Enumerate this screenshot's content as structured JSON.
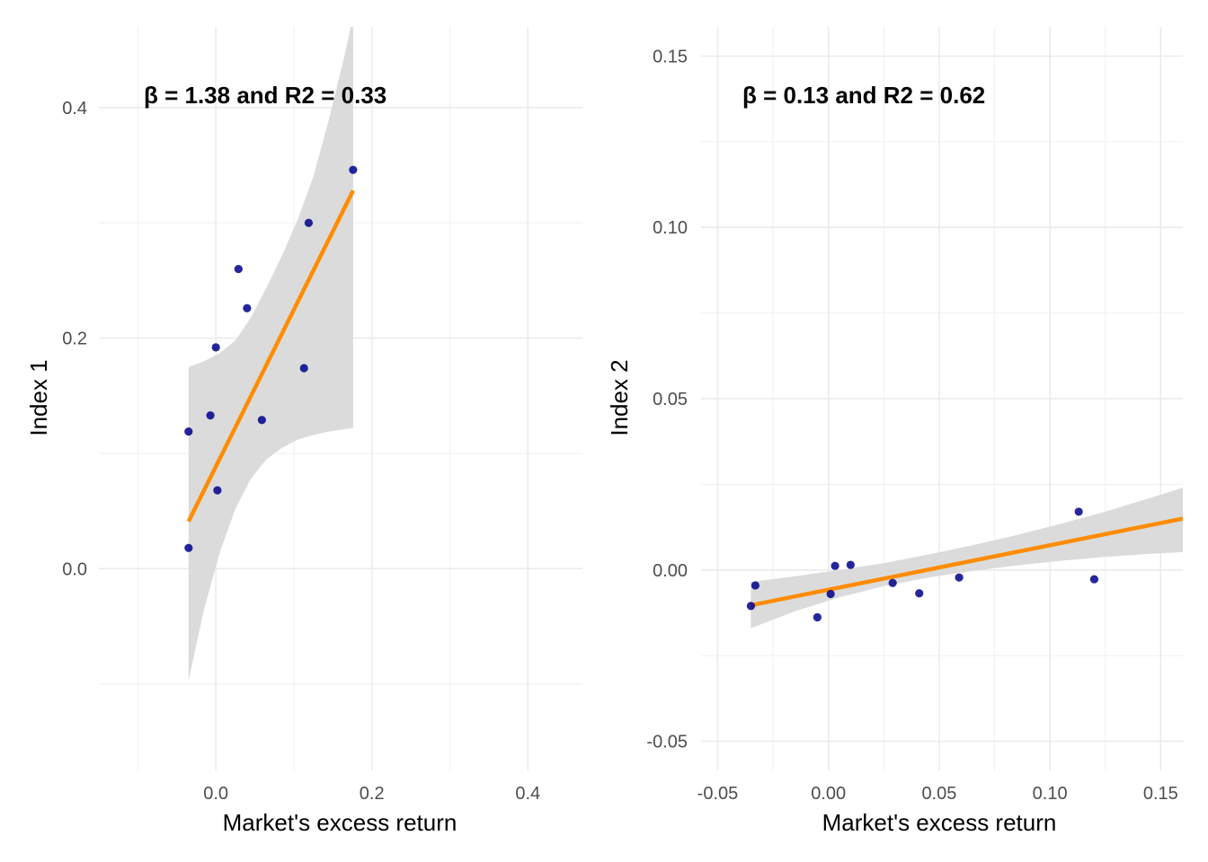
{
  "chart_data": [
    {
      "type": "scatter",
      "xlabel": "Market's excess return",
      "ylabel": "Index 1",
      "annotation": "β = 1.38 and R2 = 0.33",
      "xlim": [
        -0.15,
        0.47
      ],
      "ylim": [
        -0.175,
        0.47
      ],
      "xticks": [
        0.0,
        0.2,
        0.4
      ],
      "xtick_labels": [
        "0.0",
        "0.2",
        "0.4"
      ],
      "yticks": [
        0.0,
        0.2,
        0.4
      ],
      "ytick_labels": [
        "0.0",
        "0.2",
        "0.4"
      ],
      "points": [
        {
          "x": -0.035,
          "y": 0.018
        },
        {
          "x": -0.035,
          "y": 0.119
        },
        {
          "x": -0.007,
          "y": 0.133
        },
        {
          "x": 0.0,
          "y": 0.192
        },
        {
          "x": 0.002,
          "y": 0.068
        },
        {
          "x": 0.029,
          "y": 0.26
        },
        {
          "x": 0.04,
          "y": 0.226
        },
        {
          "x": 0.059,
          "y": 0.129
        },
        {
          "x": 0.113,
          "y": 0.174
        },
        {
          "x": 0.119,
          "y": 0.3
        },
        {
          "x": 0.176,
          "y": 0.346
        }
      ],
      "fit_line": {
        "x": [
          -0.035,
          0.176
        ],
        "y": [
          0.041,
          0.328
        ]
      },
      "confidence_band": {
        "x": [
          -0.035,
          -0.015,
          0.005,
          0.025,
          0.045,
          0.065,
          0.085,
          0.105,
          0.125,
          0.145,
          0.165,
          0.176
        ],
        "lower": [
          -0.097,
          -0.035,
          0.014,
          0.052,
          0.078,
          0.095,
          0.105,
          0.112,
          0.116,
          0.119,
          0.121,
          0.122
        ],
        "upper": [
          0.175,
          0.18,
          0.187,
          0.198,
          0.218,
          0.244,
          0.272,
          0.303,
          0.34,
          0.39,
          0.445,
          0.48
        ]
      },
      "grid": true,
      "colors": {
        "points": "#00008b",
        "fit_line": "#ff8c00",
        "band": "#d9d9d9"
      }
    },
    {
      "type": "scatter",
      "xlabel": "Market's excess return",
      "ylabel": "Index 2",
      "annotation": "β = 0.13 and R2 = 0.62",
      "xlim": [
        -0.0575,
        0.16
      ],
      "ylim": [
        -0.0585,
        0.1585
      ],
      "xticks": [
        -0.05,
        0.0,
        0.05,
        0.1,
        0.15
      ],
      "xtick_labels": [
        "-0.05",
        "0.00",
        "0.05",
        "0.10",
        "0.15"
      ],
      "yticks": [
        -0.05,
        0.0,
        0.05,
        0.1,
        0.15
      ],
      "ytick_labels": [
        "-0.05",
        "0.00",
        "0.05",
        "0.10",
        "0.15"
      ],
      "points": [
        {
          "x": -0.035,
          "y": -0.0105
        },
        {
          "x": -0.033,
          "y": -0.0045
        },
        {
          "x": -0.005,
          "y": -0.0138
        },
        {
          "x": 0.001,
          "y": -0.007
        },
        {
          "x": 0.003,
          "y": 0.0012
        },
        {
          "x": 0.01,
          "y": 0.0015
        },
        {
          "x": 0.029,
          "y": -0.0038
        },
        {
          "x": 0.041,
          "y": -0.0068
        },
        {
          "x": 0.059,
          "y": -0.0022
        },
        {
          "x": 0.113,
          "y": 0.017
        },
        {
          "x": 0.12,
          "y": -0.0027
        }
      ],
      "fit_line": {
        "x": [
          -0.035,
          0.16
        ],
        "y": [
          -0.0103,
          0.015
        ]
      },
      "confidence_band": {
        "x": [
          -0.035,
          -0.015,
          0.005,
          0.025,
          0.045,
          0.065,
          0.085,
          0.105,
          0.125,
          0.145,
          0.16
        ],
        "lower": [
          -0.017,
          -0.012,
          -0.008,
          -0.0047,
          -0.0022,
          -0.0003,
          0.0013,
          0.0027,
          0.0038,
          0.0047,
          0.0052
        ],
        "upper": [
          -0.0035,
          -0.0018,
          0.0,
          0.002,
          0.0045,
          0.0072,
          0.0102,
          0.0135,
          0.017,
          0.021,
          0.024
        ]
      },
      "grid": true,
      "colors": {
        "points": "#00008b",
        "fit_line": "#ff8c00",
        "band": "#d9d9d9"
      }
    }
  ]
}
